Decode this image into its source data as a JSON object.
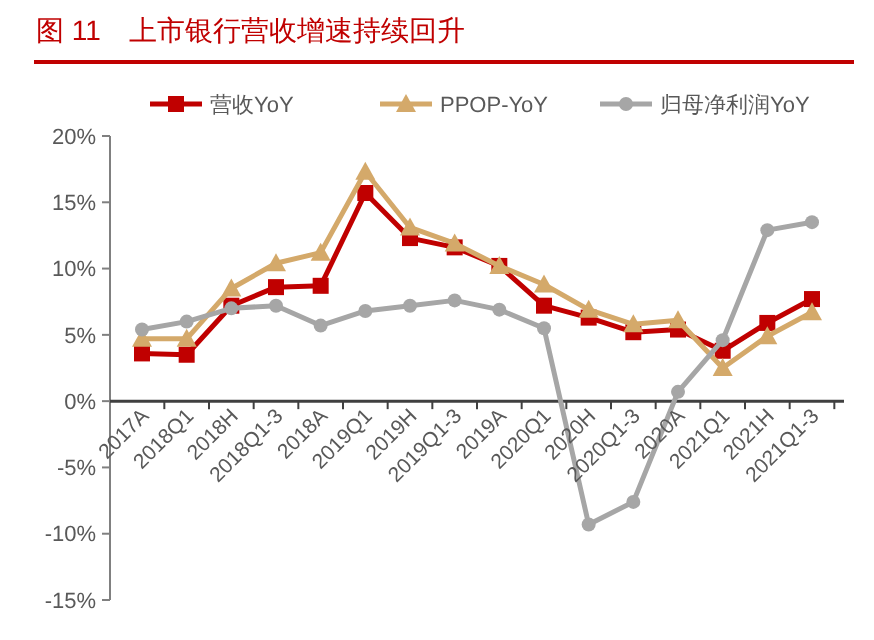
{
  "chart_data": {
    "type": "line",
    "title": "图 11　上市银行营收增速持续回升",
    "categories": [
      "2017A",
      "2018Q1",
      "2018H",
      "2018Q1-3",
      "2018A",
      "2019Q1",
      "2019H",
      "2019Q1-3",
      "2019A",
      "2020Q1",
      "2020H",
      "2020Q1-3",
      "2020A",
      "2021Q1",
      "2021H",
      "2021Q1-3"
    ],
    "series": [
      {
        "name": "营收YoY",
        "color": "#c00000",
        "marker": "square",
        "values": [
          3.6,
          3.5,
          7.2,
          8.6,
          8.7,
          15.7,
          12.3,
          11.6,
          10.2,
          7.2,
          6.3,
          5.2,
          5.4,
          3.8,
          5.9,
          7.7
        ]
      },
      {
        "name": "PPOP-YoY",
        "color": "#d4a96a",
        "marker": "triangle",
        "values": [
          4.7,
          4.7,
          8.5,
          10.4,
          11.2,
          17.3,
          13.1,
          11.9,
          10.2,
          8.8,
          6.9,
          5.8,
          6.1,
          2.5,
          4.9,
          6.7
        ]
      },
      {
        "name": "归母净利润YoY",
        "color": "#a6a6a6",
        "marker": "circle",
        "values": [
          5.4,
          6.0,
          7.0,
          7.2,
          5.7,
          6.8,
          7.2,
          7.6,
          6.9,
          5.5,
          -9.3,
          -7.6,
          0.7,
          4.6,
          12.9,
          13.5
        ]
      }
    ],
    "ylim": [
      -15,
      20
    ],
    "yticks": [
      {
        "value": -15,
        "label": "-15%"
      },
      {
        "value": -10,
        "label": "-10%"
      },
      {
        "value": -5,
        "label": "-5%"
      },
      {
        "value": 0,
        "label": "0%"
      },
      {
        "value": 5,
        "label": "5%"
      },
      {
        "value": 10,
        "label": "10%"
      },
      {
        "value": 15,
        "label": "15%"
      },
      {
        "value": 20,
        "label": "20%"
      }
    ],
    "legend": "top",
    "grid": false
  }
}
